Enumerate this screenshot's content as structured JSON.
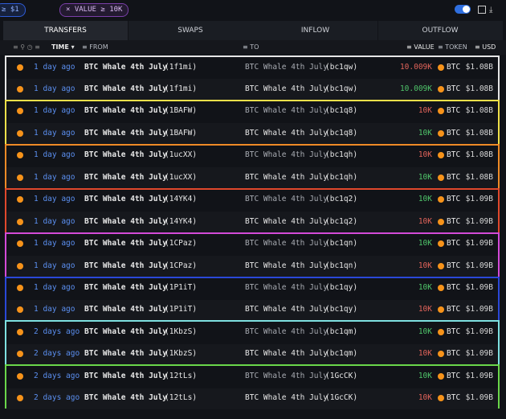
{
  "filters": {
    "chips": [
      "≥ $1",
      "VALUE ≥ 10K"
    ]
  },
  "tabs": [
    "TRANSFERS",
    "SWAPS",
    "INFLOW",
    "OUTFLOW"
  ],
  "header": {
    "time": "TIME",
    "from": "FROM",
    "to": "TO",
    "value": "VALUE",
    "token": "TOKEN",
    "usd": "USD"
  },
  "groups": [
    {
      "border_color": "#e6e6e6",
      "rows": [
        {
          "time": "1 day ago",
          "from_name": "BTC Whale 4th July",
          "from_addr": "(1f1mi)",
          "to_name": "BTC Whale 4th July",
          "to_addr": "(bc1qw)",
          "value": "10.009K",
          "value_color": "#e0635a",
          "token": "BTC",
          "usd": "$1.08B"
        },
        {
          "time": "1 day ago",
          "from_name": "BTC Whale 4th July",
          "from_addr": "(1f1mi)",
          "to_name": "BTC Whale 4th July",
          "to_addr": "(bc1qw)",
          "value": "10.009K",
          "value_color": "#4fc46a",
          "token": "BTC",
          "usd": "$1.08B"
        }
      ]
    },
    {
      "border_color": "#efe04a",
      "rows": [
        {
          "time": "1 day ago",
          "from_name": "BTC Whale 4th July",
          "from_addr": "(1BAFW)",
          "to_name": "BTC Whale 4th July",
          "to_addr": "(bc1q8)",
          "value": "10K",
          "value_color": "#e0635a",
          "token": "BTC",
          "usd": "$1.08B"
        },
        {
          "time": "1 day ago",
          "from_name": "BTC Whale 4th July",
          "from_addr": "(1BAFW)",
          "to_name": "BTC Whale 4th July",
          "to_addr": "(bc1q8)",
          "value": "10K",
          "value_color": "#4fc46a",
          "token": "BTC",
          "usd": "$1.08B"
        }
      ]
    },
    {
      "border_color": "#ef8a26",
      "rows": [
        {
          "time": "1 day ago",
          "from_name": "BTC Whale 4th July",
          "from_addr": "(1ucXX)",
          "to_name": "BTC Whale 4th July",
          "to_addr": "(bc1qh)",
          "value": "10K",
          "value_color": "#e0635a",
          "token": "BTC",
          "usd": "$1.08B"
        },
        {
          "time": "1 day ago",
          "from_name": "BTC Whale 4th July",
          "from_addr": "(1ucXX)",
          "to_name": "BTC Whale 4th July",
          "to_addr": "(bc1qh)",
          "value": "10K",
          "value_color": "#4fc46a",
          "token": "BTC",
          "usd": "$1.08B"
        }
      ]
    },
    {
      "border_color": "#e0482c",
      "rows": [
        {
          "time": "1 day ago",
          "from_name": "BTC Whale 4th July",
          "from_addr": "(14YK4)",
          "to_name": "BTC Whale 4th July",
          "to_addr": "(bc1q2)",
          "value": "10K",
          "value_color": "#4fc46a",
          "token": "BTC",
          "usd": "$1.09B"
        },
        {
          "time": "1 day ago",
          "from_name": "BTC Whale 4th July",
          "from_addr": "(14YK4)",
          "to_name": "BTC Whale 4th July",
          "to_addr": "(bc1q2)",
          "value": "10K",
          "value_color": "#e0635a",
          "token": "BTC",
          "usd": "$1.09B"
        }
      ]
    },
    {
      "border_color": "#d44ad8",
      "rows": [
        {
          "time": "1 day ago",
          "from_name": "BTC Whale 4th July",
          "from_addr": "(1CPaz)",
          "to_name": "BTC Whale 4th July",
          "to_addr": "(bc1qn)",
          "value": "10K",
          "value_color": "#4fc46a",
          "token": "BTC",
          "usd": "$1.09B"
        },
        {
          "time": "1 day ago",
          "from_name": "BTC Whale 4th July",
          "from_addr": "(1CPaz)",
          "to_name": "BTC Whale 4th July",
          "to_addr": "(bc1qn)",
          "value": "10K",
          "value_color": "#e0635a",
          "token": "BTC",
          "usd": "$1.09B"
        }
      ]
    },
    {
      "border_color": "#2a48d8",
      "rows": [
        {
          "time": "1 day ago",
          "from_name": "BTC Whale 4th July",
          "from_addr": "(1P1iT)",
          "to_name": "BTC Whale 4th July",
          "to_addr": "(bc1qy)",
          "value": "10K",
          "value_color": "#4fc46a",
          "token": "BTC",
          "usd": "$1.09B"
        },
        {
          "time": "1 day ago",
          "from_name": "BTC Whale 4th July",
          "from_addr": "(1P1iT)",
          "to_name": "BTC Whale 4th July",
          "to_addr": "(bc1qy)",
          "value": "10K",
          "value_color": "#e0635a",
          "token": "BTC",
          "usd": "$1.09B"
        }
      ]
    },
    {
      "border_color": "#7ee0e0",
      "rows": [
        {
          "time": "2 days ago",
          "from_name": "BTC Whale 4th July",
          "from_addr": "(1KbzS)",
          "to_name": "BTC Whale 4th July",
          "to_addr": "(bc1qm)",
          "value": "10K",
          "value_color": "#4fc46a",
          "token": "BTC",
          "usd": "$1.09B"
        },
        {
          "time": "2 days ago",
          "from_name": "BTC Whale 4th July",
          "from_addr": "(1KbzS)",
          "to_name": "BTC Whale 4th July",
          "to_addr": "(bc1qm)",
          "value": "10K",
          "value_color": "#e0635a",
          "token": "BTC",
          "usd": "$1.09B"
        }
      ]
    },
    {
      "border_color": "#6ad64a",
      "rows": [
        {
          "time": "2 days ago",
          "from_name": "BTC Whale 4th July",
          "from_addr": "(12tLs)",
          "to_name": "BTC Whale 4th July",
          "to_addr": "(1GcCK)",
          "value": "10K",
          "value_color": "#4fc46a",
          "token": "BTC",
          "usd": "$1.09B"
        },
        {
          "time": "2 days ago",
          "from_name": "BTC Whale 4th July",
          "from_addr": "(12tLs)",
          "to_name": "BTC Whale 4th July",
          "to_addr": "(1GcCK)",
          "value": "10K",
          "value_color": "#e0635a",
          "token": "BTC",
          "usd": "$1.09B"
        }
      ]
    }
  ]
}
